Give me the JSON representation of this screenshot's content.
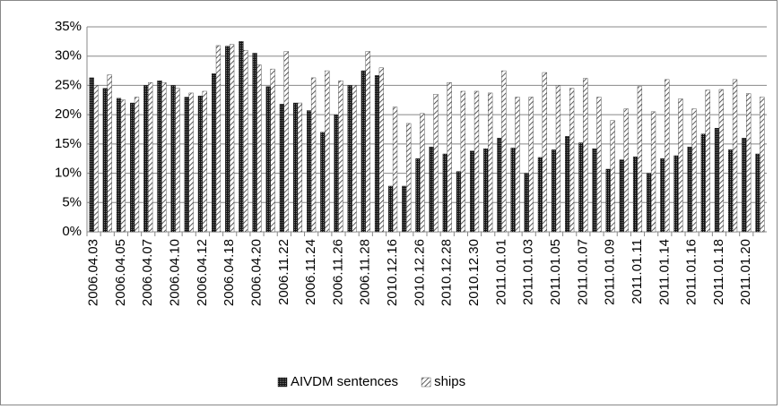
{
  "chart_data": {
    "type": "bar",
    "categories": [
      "2006.04.03",
      null,
      "2006.04.05",
      null,
      "2006.04.07",
      null,
      "2006.04.10",
      null,
      "2006.04.12",
      null,
      "2006.04.18",
      null,
      "2006.04.20",
      null,
      "2006.11.22",
      null,
      "2006.11.24",
      null,
      "2006.11.26",
      null,
      "2006.11.28",
      null,
      "2010.12.16",
      null,
      "2010.12.26",
      null,
      "2010.12.28",
      null,
      "2010.12.30",
      null,
      "2011.01.01",
      null,
      "2011.01.03",
      null,
      "2011.01.05",
      null,
      "2011.01.07",
      null,
      "2011.01.09",
      null,
      "2011.01.11",
      null,
      "2011.01.14",
      null,
      "2011.01.16",
      null,
      "2011.01.18",
      null,
      "2011.01.20",
      null
    ],
    "series": [
      {
        "name": "AIVDM sentences",
        "color": "#111111",
        "pattern": "dense",
        "values": [
          26.3,
          24.5,
          22.8,
          22,
          25,
          25.8,
          25,
          23,
          23.2,
          27,
          31.7,
          32.5,
          30.5,
          24.8,
          21.8,
          22,
          20.7,
          17,
          20,
          25,
          27.5,
          26.7,
          7.8,
          7.8,
          12.5,
          14.5,
          13.3,
          10.3,
          13.8,
          14.2,
          16,
          14.3,
          10,
          12.7,
          14,
          16.3,
          15.2,
          14.2,
          10.7,
          12.3,
          12.8,
          10,
          12.5,
          13,
          14.5,
          16.7,
          17.7,
          14,
          16,
          13.3
        ]
      },
      {
        "name": "ships",
        "color": "#333333",
        "pattern": "diagonal",
        "values": [
          25,
          26.8,
          22.5,
          23,
          25.5,
          25.5,
          24.5,
          23.7,
          24,
          31.8,
          32,
          31,
          28.5,
          27.8,
          30.8,
          22,
          26.3,
          27.5,
          25.8,
          25,
          30.8,
          28,
          21.3,
          18.5,
          20.2,
          23.5,
          25.5,
          24,
          24,
          23.7,
          27.5,
          23,
          23,
          27.2,
          25,
          24.5,
          26.2,
          23,
          19,
          21,
          24.8,
          20.5,
          26,
          22.7,
          21,
          24.2,
          24.3,
          26,
          23.6,
          23
        ]
      }
    ],
    "ylim": [
      0,
      35
    ],
    "yticks": [
      {
        "value": 0,
        "label": "0%"
      },
      {
        "value": 5,
        "label": "5%"
      },
      {
        "value": 10,
        "label": "10%"
      },
      {
        "value": 15,
        "label": "15%"
      },
      {
        "value": 20,
        "label": "20%"
      },
      {
        "value": 25,
        "label": "25%"
      },
      {
        "value": 30,
        "label": "30%"
      },
      {
        "value": 35,
        "label": "35%"
      }
    ],
    "grid": true,
    "legend": "bottom"
  }
}
